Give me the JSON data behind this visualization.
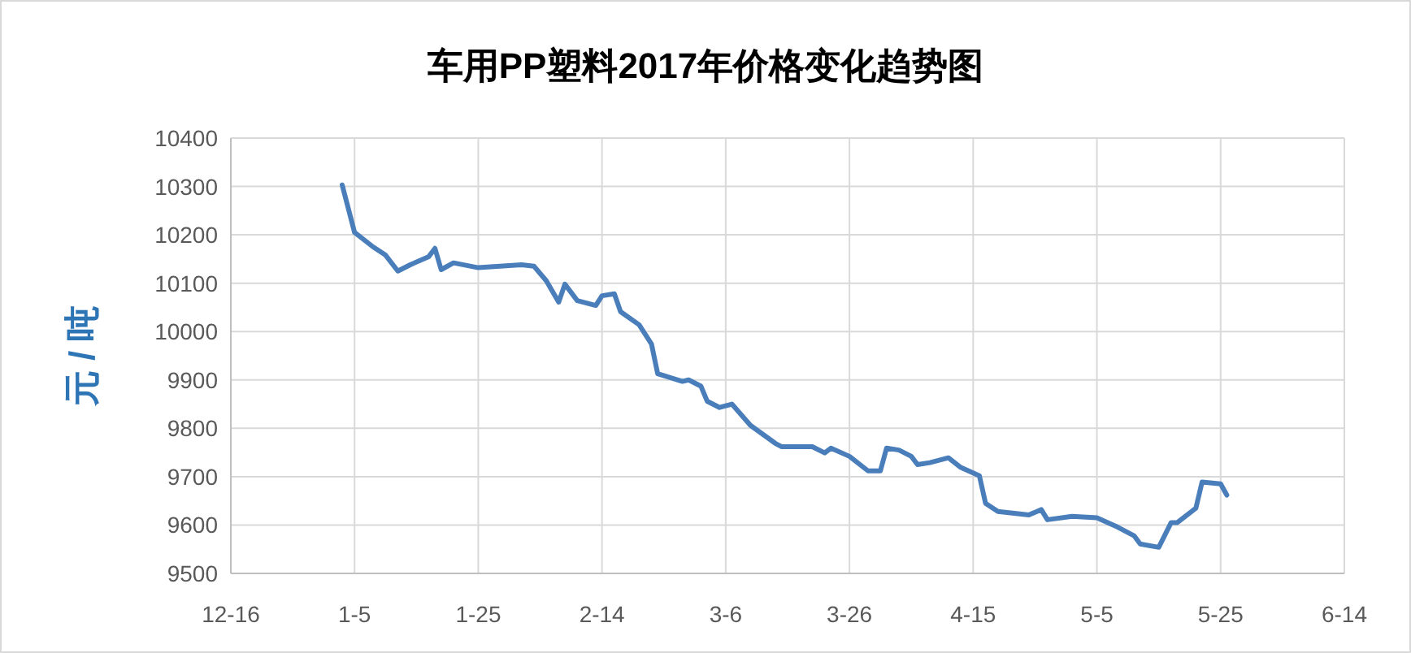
{
  "chart_data": {
    "type": "line",
    "title": "车用PP塑料2017年价格变化趋势图",
    "ylabel": "元 / 吨",
    "x": [
      "2017-01-03",
      "2017-01-05",
      "2017-01-08",
      "2017-01-10",
      "2017-01-12",
      "2017-01-14",
      "2017-01-17",
      "2017-01-18",
      "2017-01-19",
      "2017-01-21",
      "2017-01-25",
      "2017-02-01",
      "2017-02-03",
      "2017-02-05",
      "2017-02-07",
      "2017-02-08",
      "2017-02-10",
      "2017-02-13",
      "2017-02-14",
      "2017-02-16",
      "2017-02-17",
      "2017-02-20",
      "2017-02-22",
      "2017-02-23",
      "2017-02-27",
      "2017-02-28",
      "2017-03-02",
      "2017-03-03",
      "2017-03-05",
      "2017-03-07",
      "2017-03-10",
      "2017-03-14",
      "2017-03-15",
      "2017-03-20",
      "2017-03-22",
      "2017-03-23",
      "2017-03-26",
      "2017-03-29",
      "2017-03-31",
      "2017-04-01",
      "2017-04-03",
      "2017-04-05",
      "2017-04-06",
      "2017-04-08",
      "2017-04-11",
      "2017-04-13",
      "2017-04-16",
      "2017-04-17",
      "2017-04-19",
      "2017-04-24",
      "2017-04-26",
      "2017-04-27",
      "2017-05-01",
      "2017-05-05",
      "2017-05-08",
      "2017-05-11",
      "2017-05-12",
      "2017-05-15",
      "2017-05-17",
      "2017-05-18",
      "2017-05-21",
      "2017-05-22",
      "2017-05-25",
      "2017-05-26"
    ],
    "series": [
      {
        "color": "#4a7ebb",
        "values": [
          10303,
          10205,
          10175,
          10158,
          10125,
          10138,
          10155,
          10172,
          10128,
          10142,
          10132,
          10138,
          10135,
          10105,
          10061,
          10098,
          10064,
          10054,
          10074,
          10078,
          10041,
          10014,
          9974,
          9913,
          9897,
          9900,
          9887,
          9856,
          9843,
          9850,
          9806,
          9769,
          9762,
          9762,
          9749,
          9759,
          9742,
          9712,
          9712,
          9759,
          9755,
          9742,
          9725,
          9729,
          9739,
          9719,
          9702,
          9645,
          9628,
          9621,
          9632,
          9611,
          9618,
          9615,
          9598,
          9578,
          9561,
          9554,
          9605,
          9605,
          9635,
          9689,
          9685,
          9662
        ]
      }
    ],
    "xlim": [
      "2016-12-16",
      "2017-06-14"
    ],
    "xticks": [
      {
        "value": "2016-12-16",
        "label": "12-16"
      },
      {
        "value": "2017-01-05",
        "label": "1-5"
      },
      {
        "value": "2017-01-25",
        "label": "1-25"
      },
      {
        "value": "2017-02-14",
        "label": "2-14"
      },
      {
        "value": "2017-03-06",
        "label": "3-6"
      },
      {
        "value": "2017-03-26",
        "label": "3-26"
      },
      {
        "value": "2017-04-15",
        "label": "4-15"
      },
      {
        "value": "2017-05-05",
        "label": "5-5"
      },
      {
        "value": "2017-05-25",
        "label": "5-25"
      },
      {
        "value": "2017-06-14",
        "label": "6-14"
      }
    ],
    "ylim": [
      9500,
      10400
    ],
    "yticks": [
      9500,
      9600,
      9700,
      9800,
      9900,
      10000,
      10100,
      10200,
      10300,
      10400
    ],
    "grid": true,
    "marker": "none",
    "line_style": "solid"
  }
}
